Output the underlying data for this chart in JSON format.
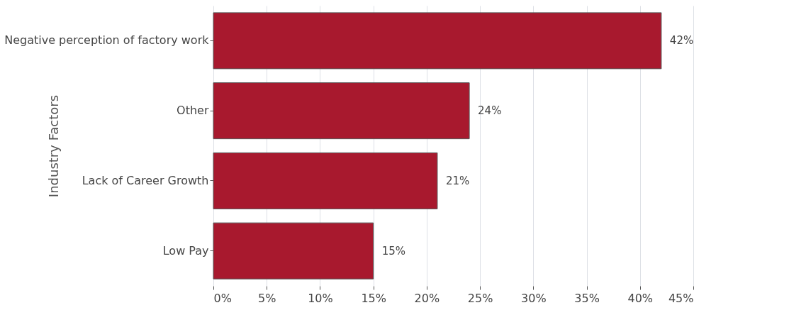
{
  "chart_data": {
    "type": "bar",
    "orientation": "horizontal",
    "ylabel": "Industry Factors",
    "categories": [
      "Negative perception of factory work",
      "Other",
      "Lack of Career Growth",
      "Low Pay"
    ],
    "values": [
      42,
      24,
      21,
      15
    ],
    "color": "#a8192e",
    "value_labels": [
      "42%",
      "24%",
      "21%",
      "15%"
    ],
    "xlim": [
      0,
      45
    ],
    "xticks": [
      {
        "value": 0,
        "label": "0%"
      },
      {
        "value": 5,
        "label": "5%"
      },
      {
        "value": 10,
        "label": "10%"
      },
      {
        "value": 15,
        "label": "15%"
      },
      {
        "value": 20,
        "label": "20%"
      },
      {
        "value": 25,
        "label": "25%"
      },
      {
        "value": 30,
        "label": "30%"
      },
      {
        "value": 35,
        "label": "35%"
      },
      {
        "value": 40,
        "label": "40%"
      },
      {
        "value": 45,
        "label": "45%"
      }
    ],
    "grid": "x"
  }
}
